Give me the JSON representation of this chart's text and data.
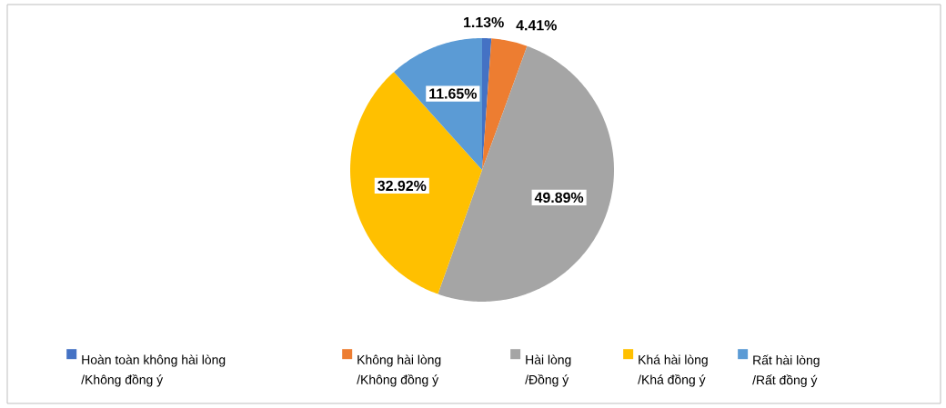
{
  "chart_data": {
    "type": "pie",
    "categories": [
      "Hoàn toàn không hài lòng /Không đồng ý",
      "Không hài lòng /Không đồng ý",
      "Hài lòng /Đồng ý",
      "Khá hài lòng /Khá đồng ý",
      "Rất hài lòng /Rất đồng ý"
    ],
    "values": [
      1.13,
      4.41,
      49.89,
      32.92,
      11.65
    ],
    "colors": [
      "#4472c4",
      "#ed7d31",
      "#a5a5a5",
      "#ffc000",
      "#5b9bd5"
    ],
    "value_labels": [
      "1.13%",
      "4.41%",
      "49.89%",
      "32.92%",
      "11.65%"
    ],
    "legend": "bottom"
  }
}
